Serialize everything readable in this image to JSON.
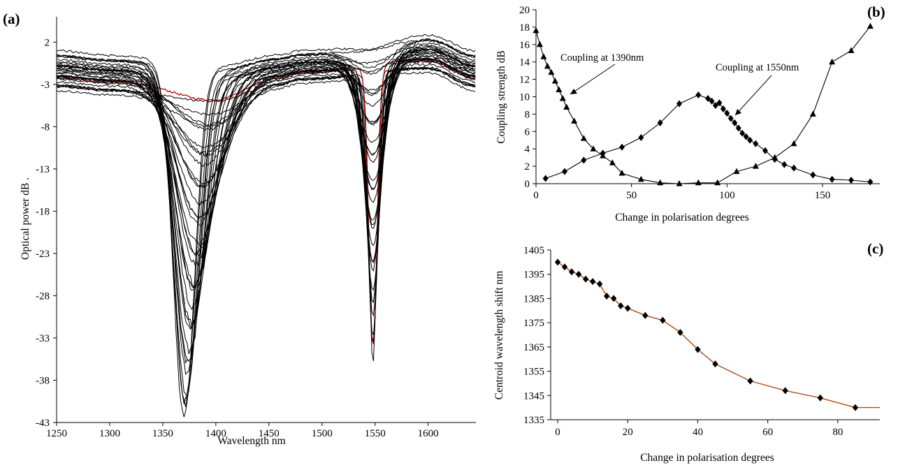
{
  "chart_data": [
    {
      "panel": "(a)",
      "type": "line",
      "title": "",
      "xlabel": "Wavelength nm",
      "ylabel": "Optical power dB .",
      "xlim": [
        1250,
        1645
      ],
      "ylim": [
        -43,
        5
      ],
      "xticks": [
        "1250",
        "1300",
        "1350",
        "1400",
        "1450",
        "1500",
        "1550",
        "1600"
      ],
      "yticks": [
        "2",
        "-3",
        "-8",
        "-13",
        "-18",
        "-23",
        "-28",
        "-33",
        "-38",
        "-43"
      ],
      "grid": false,
      "legend": "none",
      "colors": {
        "default": "#000000",
        "highlight": "#c00000"
      },
      "family": {
        "count": 36,
        "highlighted_index": 1,
        "dip1_center_nm": 1370,
        "dip1_depth_range_db": [
          -0.5,
          -41.5
        ],
        "dip2_center_nm": 1548,
        "dip2_depth_range_db": [
          -0.5,
          -34.5
        ],
        "baseline_db": {
          "1250": -1.5,
          "1300": -2.0,
          "1400": -3.0,
          "1460": -1.5,
          "1480": -1.0,
          "1600": 0.5,
          "1645": -1.5
        }
      }
    },
    {
      "panel": "(b)",
      "type": "line",
      "title": "",
      "xlabel": "Change in polarisation degrees",
      "ylabel": "Coupling strength dB",
      "xlim": [
        0,
        180
      ],
      "ylim": [
        0,
        20
      ],
      "xticks": [
        "0",
        "50",
        "100",
        "150"
      ],
      "yticks": [
        "0",
        "2",
        "4",
        "6",
        "8",
        "10",
        "12",
        "14",
        "16",
        "18",
        "20"
      ],
      "grid": false,
      "legend": "none",
      "annotations": [
        "Coupling at 1390nm",
        "Coupling at 1550nm"
      ],
      "series": [
        {
          "marker": "triangle",
          "x": [
            0,
            2,
            4,
            6,
            8,
            10,
            12,
            14,
            16,
            20,
            25,
            30,
            35,
            40,
            45,
            55,
            65,
            75,
            85,
            95,
            105,
            115,
            125,
            135,
            145,
            155,
            165,
            175
          ],
          "y": [
            17.6,
            16.0,
            14.6,
            13.5,
            12.8,
            11.8,
            10.8,
            9.8,
            8.8,
            7.2,
            5.2,
            4.0,
            3.2,
            2.4,
            1.2,
            0.5,
            0.1,
            0.0,
            0.1,
            0.1,
            1.4,
            2.0,
            3.0,
            4.6,
            8.0,
            14.0,
            15.3,
            18.1
          ]
        },
        {
          "marker": "diamond",
          "x": [
            5,
            15,
            25,
            35,
            45,
            55,
            65,
            75,
            85,
            90,
            92,
            94,
            96,
            98,
            100,
            102,
            104,
            106,
            108,
            110,
            112,
            115,
            120,
            125,
            130,
            135,
            145,
            155,
            165,
            175
          ],
          "y": [
            0.6,
            1.4,
            2.7,
            3.5,
            4.2,
            5.3,
            7.0,
            9.2,
            10.2,
            9.8,
            9.5,
            9.0,
            9.3,
            8.6,
            8.1,
            7.5,
            7.0,
            6.4,
            5.8,
            5.4,
            5.0,
            4.6,
            3.8,
            2.8,
            2.2,
            1.8,
            1.0,
            0.5,
            0.4,
            0.2
          ]
        }
      ]
    },
    {
      "panel": "(c)",
      "type": "line",
      "title": "",
      "xlabel": "Change in polarisation degrees",
      "ylabel": "Centroid wavelength shift nm",
      "xlim": [
        -2,
        92
      ],
      "ylim": [
        1335,
        1405
      ],
      "xticks": [
        "0",
        "20",
        "40",
        "60",
        "80"
      ],
      "yticks": [
        "1335",
        "1345",
        "1355",
        "1365",
        "1375",
        "1385",
        "1395",
        "1405"
      ],
      "grid": false,
      "legend": "none",
      "line_color": "#b24a12",
      "series": [
        {
          "marker": "diamond",
          "x": [
            0,
            2,
            4,
            6,
            8,
            10,
            12,
            14,
            16,
            18,
            20,
            25,
            30,
            35,
            40,
            45,
            55,
            65,
            75,
            85,
            92
          ],
          "y": [
            1400,
            1398,
            1396,
            1395,
            1393,
            1392,
            1391,
            1386,
            1385,
            1382,
            1381,
            1378,
            1376,
            1371,
            1364,
            1358,
            1351,
            1347,
            1344,
            1340,
            1340
          ]
        }
      ]
    }
  ]
}
